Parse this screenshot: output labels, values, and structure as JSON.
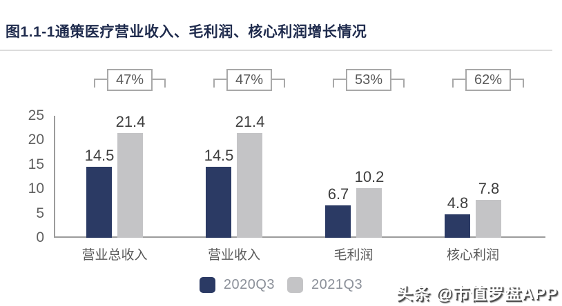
{
  "figure": {
    "title": "图1.1-1通策医疗营业收入、毛利润、核心利润增长情况"
  },
  "chart_data": {
    "type": "bar",
    "title": "通策医疗营业收入、毛利润、核心利润增长情况",
    "categories": [
      "营业总收入",
      "营业收入",
      "毛利润",
      "核心利润"
    ],
    "series": [
      {
        "name": "2020Q3",
        "color": "#2b3a64",
        "values": [
          14.5,
          14.5,
          6.7,
          4.8
        ]
      },
      {
        "name": "2021Q3",
        "color": "#c4c4c6",
        "values": [
          21.4,
          21.4,
          10.2,
          7.8
        ]
      }
    ],
    "growth_labels": [
      "47%",
      "47%",
      "53%",
      "62%"
    ],
    "y_ticks": [
      0,
      5,
      10,
      15,
      20,
      25
    ],
    "ylim": [
      0,
      25
    ],
    "xlabel": "",
    "ylabel": "",
    "grid": false,
    "legend_position": "bottom",
    "value_labels_shown": true
  },
  "colors": {
    "title_text": "#1f2b4d",
    "axis_line": "#9b9b9b",
    "tick_text": "#616161",
    "bracket": "#a8a8a8",
    "series_2020q3": "#2b3a64",
    "series_2021q3": "#c4c4c6"
  },
  "watermark": {
    "text": "头条 @市值罗盘APP"
  }
}
